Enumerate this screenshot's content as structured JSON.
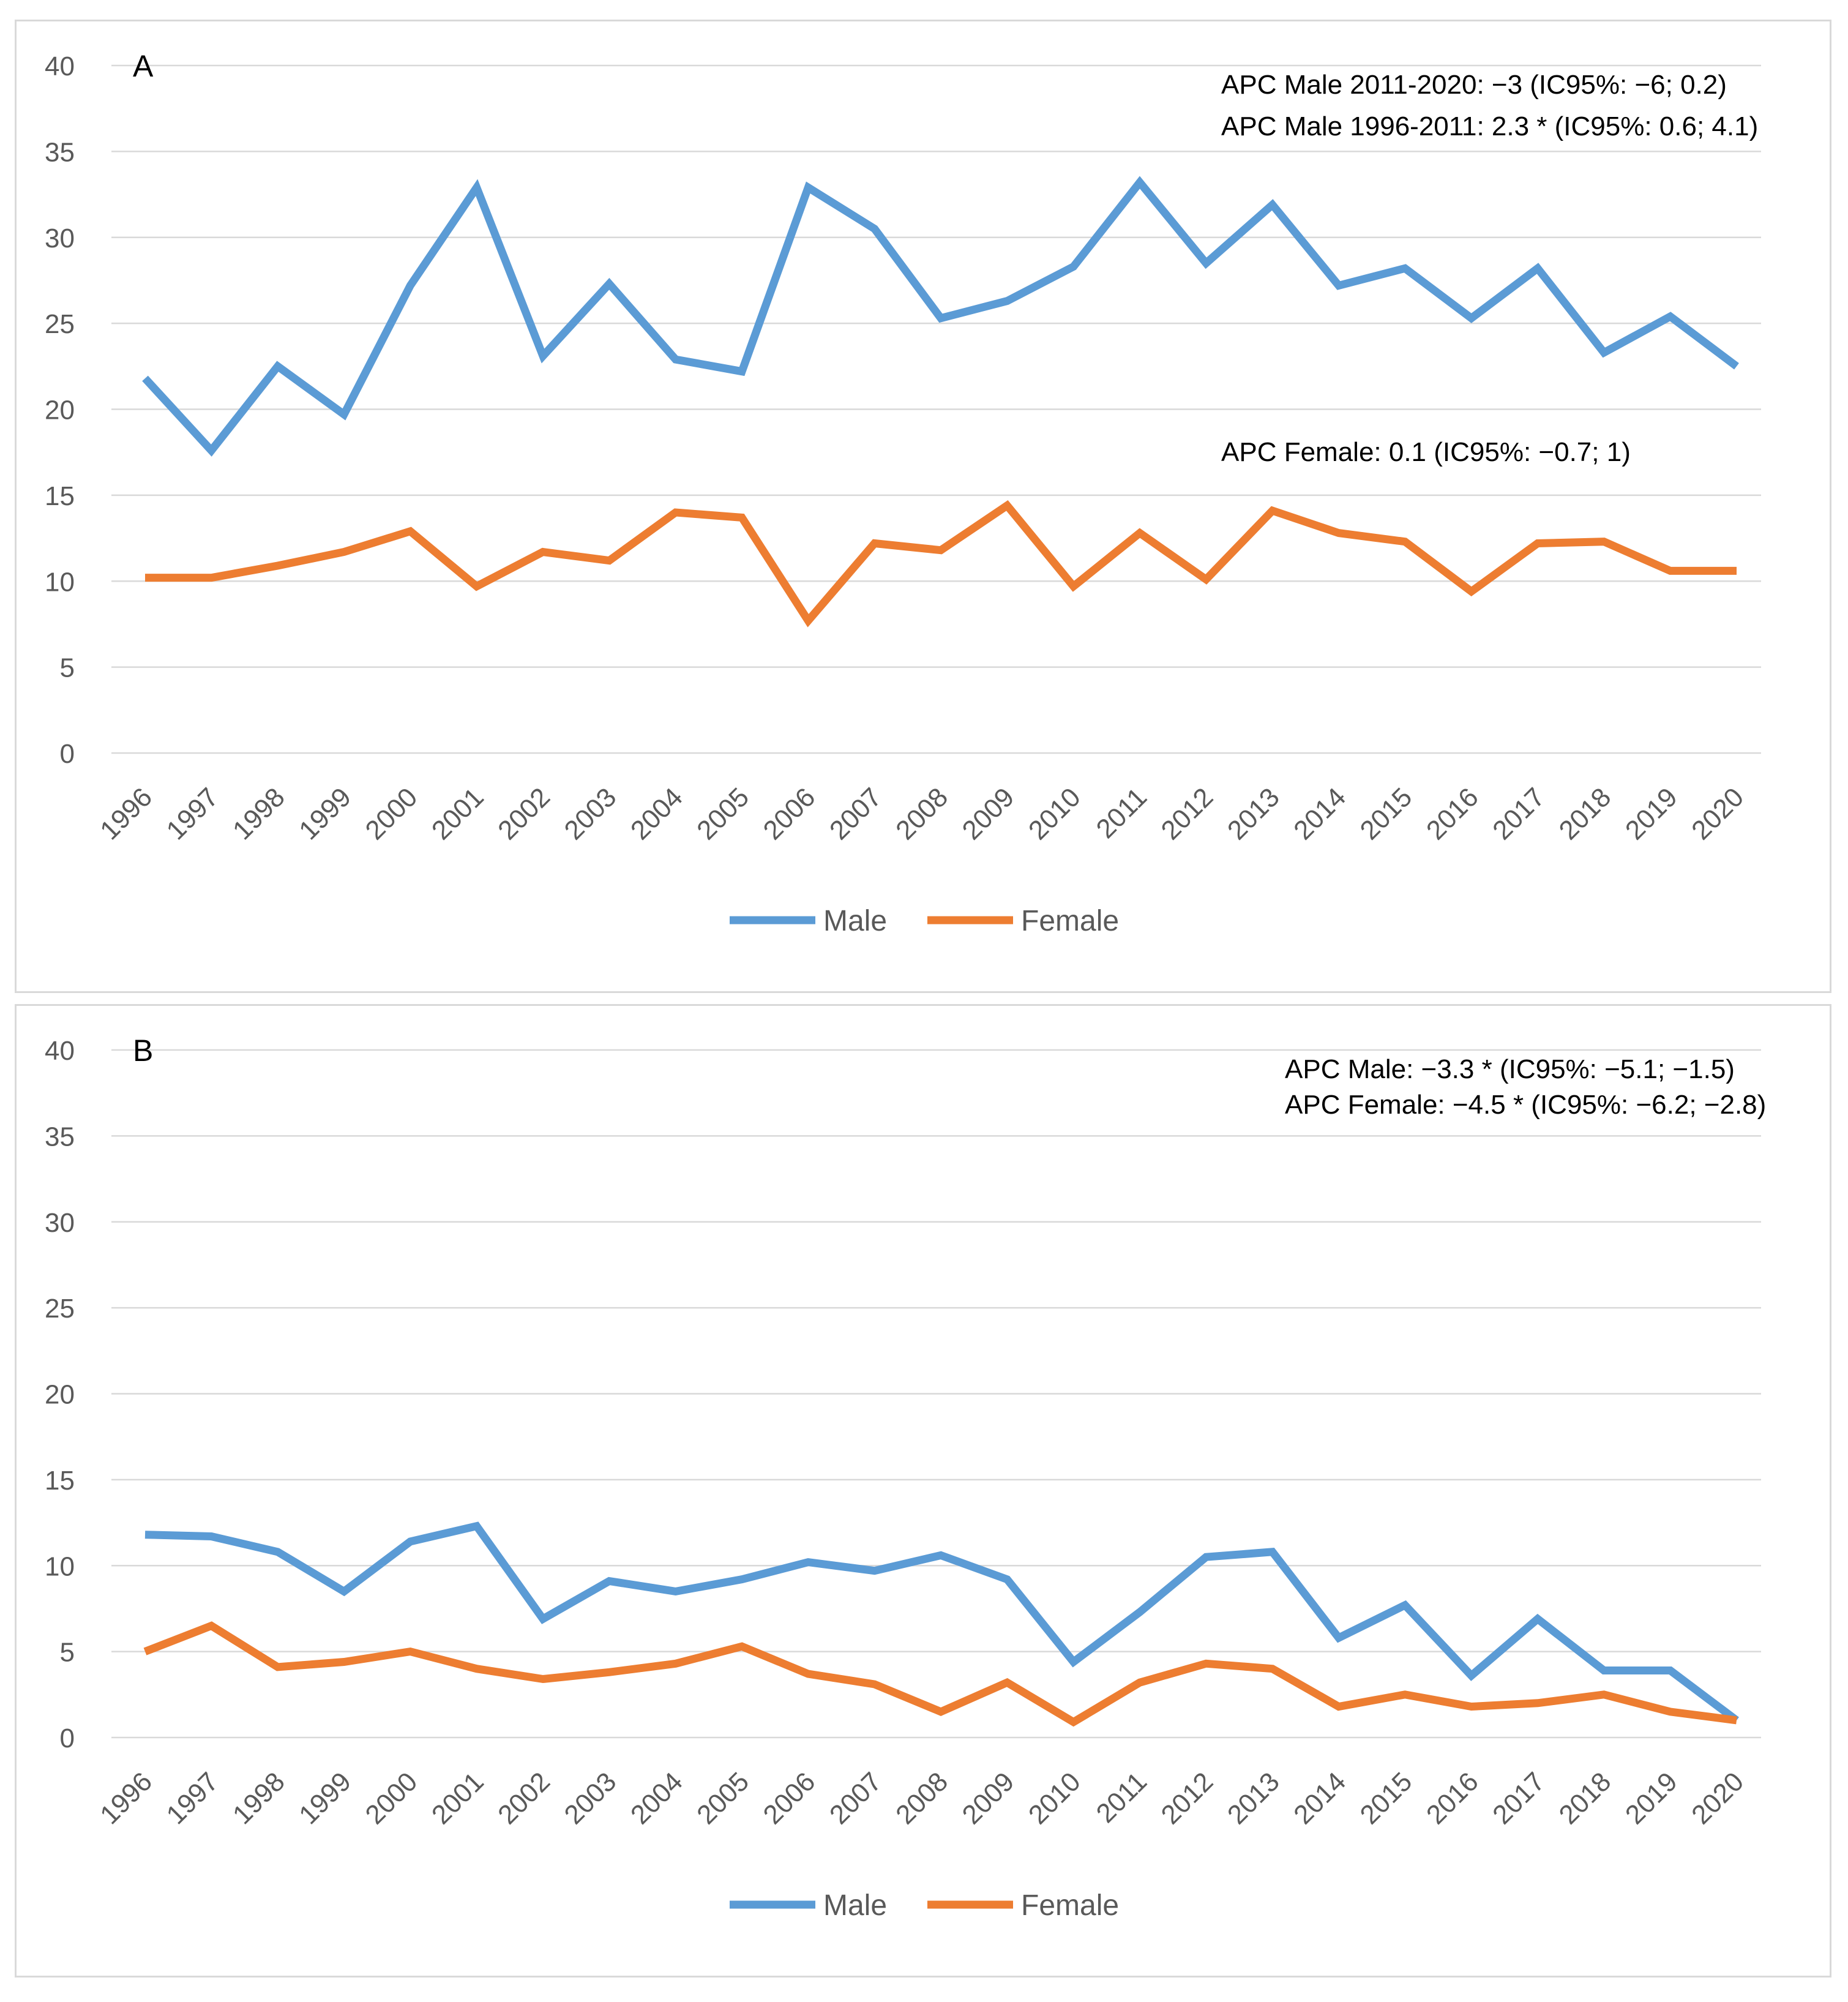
{
  "chart_data": [
    {
      "type": "line",
      "panel_label": "A",
      "x": [
        "1996",
        "1997",
        "1998",
        "1999",
        "2000",
        "2001",
        "2002",
        "2003",
        "2004",
        "2005",
        "2006",
        "2007",
        "2008",
        "2009",
        "2010",
        "2011",
        "2012",
        "2013",
        "2014",
        "2015",
        "2016",
        "2017",
        "2018",
        "2019",
        "2020"
      ],
      "series": [
        {
          "name": "Male",
          "color": "#5B9BD5",
          "values": [
            21.8,
            17.6,
            22.5,
            19.7,
            27.2,
            32.9,
            23.1,
            27.3,
            22.9,
            22.2,
            32.9,
            30.5,
            25.3,
            26.3,
            28.3,
            33.2,
            28.5,
            31.9,
            27.2,
            28.2,
            25.3,
            28.2,
            23.3,
            25.4,
            22.5
          ]
        },
        {
          "name": "Female",
          "color": "#ED7D31",
          "values": [
            10.2,
            10.2,
            10.9,
            11.7,
            12.9,
            9.7,
            11.7,
            11.2,
            14.0,
            13.7,
            7.7,
            12.2,
            11.8,
            14.4,
            9.7,
            12.8,
            10.1,
            14.1,
            12.8,
            12.3,
            9.4,
            12.2,
            12.3,
            10.6,
            10.6
          ]
        }
      ],
      "ylim": [
        0,
        40
      ],
      "yticks": [
        "0",
        "5",
        "10",
        "15",
        "20",
        "25",
        "30",
        "35",
        "40"
      ],
      "legend_position": "bottom",
      "grid": true,
      "annotations": [
        "APC Male 2011-2020: −3 (IC95%: −6; 0.2)",
        "APC Male 1996-2011: 2.3 * (IC95%: 0.6; 4.1)",
        "APC Female: 0.1 (IC95%: −0.7; 1)"
      ]
    },
    {
      "type": "line",
      "panel_label": "B",
      "x": [
        "1996",
        "1997",
        "1998",
        "1999",
        "2000",
        "2001",
        "2002",
        "2003",
        "2004",
        "2005",
        "2006",
        "2007",
        "2008",
        "2009",
        "2010",
        "2011",
        "2012",
        "2013",
        "2014",
        "2015",
        "2016",
        "2017",
        "2018",
        "2019",
        "2020"
      ],
      "series": [
        {
          "name": "Male",
          "color": "#5B9BD5",
          "values": [
            11.8,
            11.7,
            10.8,
            8.5,
            11.4,
            12.3,
            6.9,
            9.1,
            8.5,
            9.2,
            10.2,
            9.7,
            10.6,
            9.2,
            4.4,
            7.3,
            10.5,
            10.8,
            5.8,
            7.7,
            3.6,
            6.9,
            3.9,
            3.9,
            1.0
          ]
        },
        {
          "name": "Female",
          "color": "#ED7D31",
          "values": [
            5.0,
            6.5,
            4.1,
            4.4,
            5.0,
            4.0,
            3.4,
            3.8,
            4.3,
            5.3,
            3.7,
            3.1,
            1.5,
            3.2,
            0.9,
            3.2,
            4.3,
            4.0,
            1.8,
            2.5,
            1.8,
            2.0,
            2.5,
            1.5,
            1.0
          ]
        }
      ],
      "ylim": [
        0,
        40
      ],
      "yticks": [
        "0",
        "5",
        "10",
        "15",
        "20",
        "25",
        "30",
        "35",
        "40"
      ],
      "legend_position": "bottom",
      "grid": true,
      "annotations": [
        "APC Male: −3.3 * (IC95%: −5.1; −1.5)",
        "APC Female: −4.5 * (IC95%: −6.2; −2.8)"
      ]
    }
  ]
}
